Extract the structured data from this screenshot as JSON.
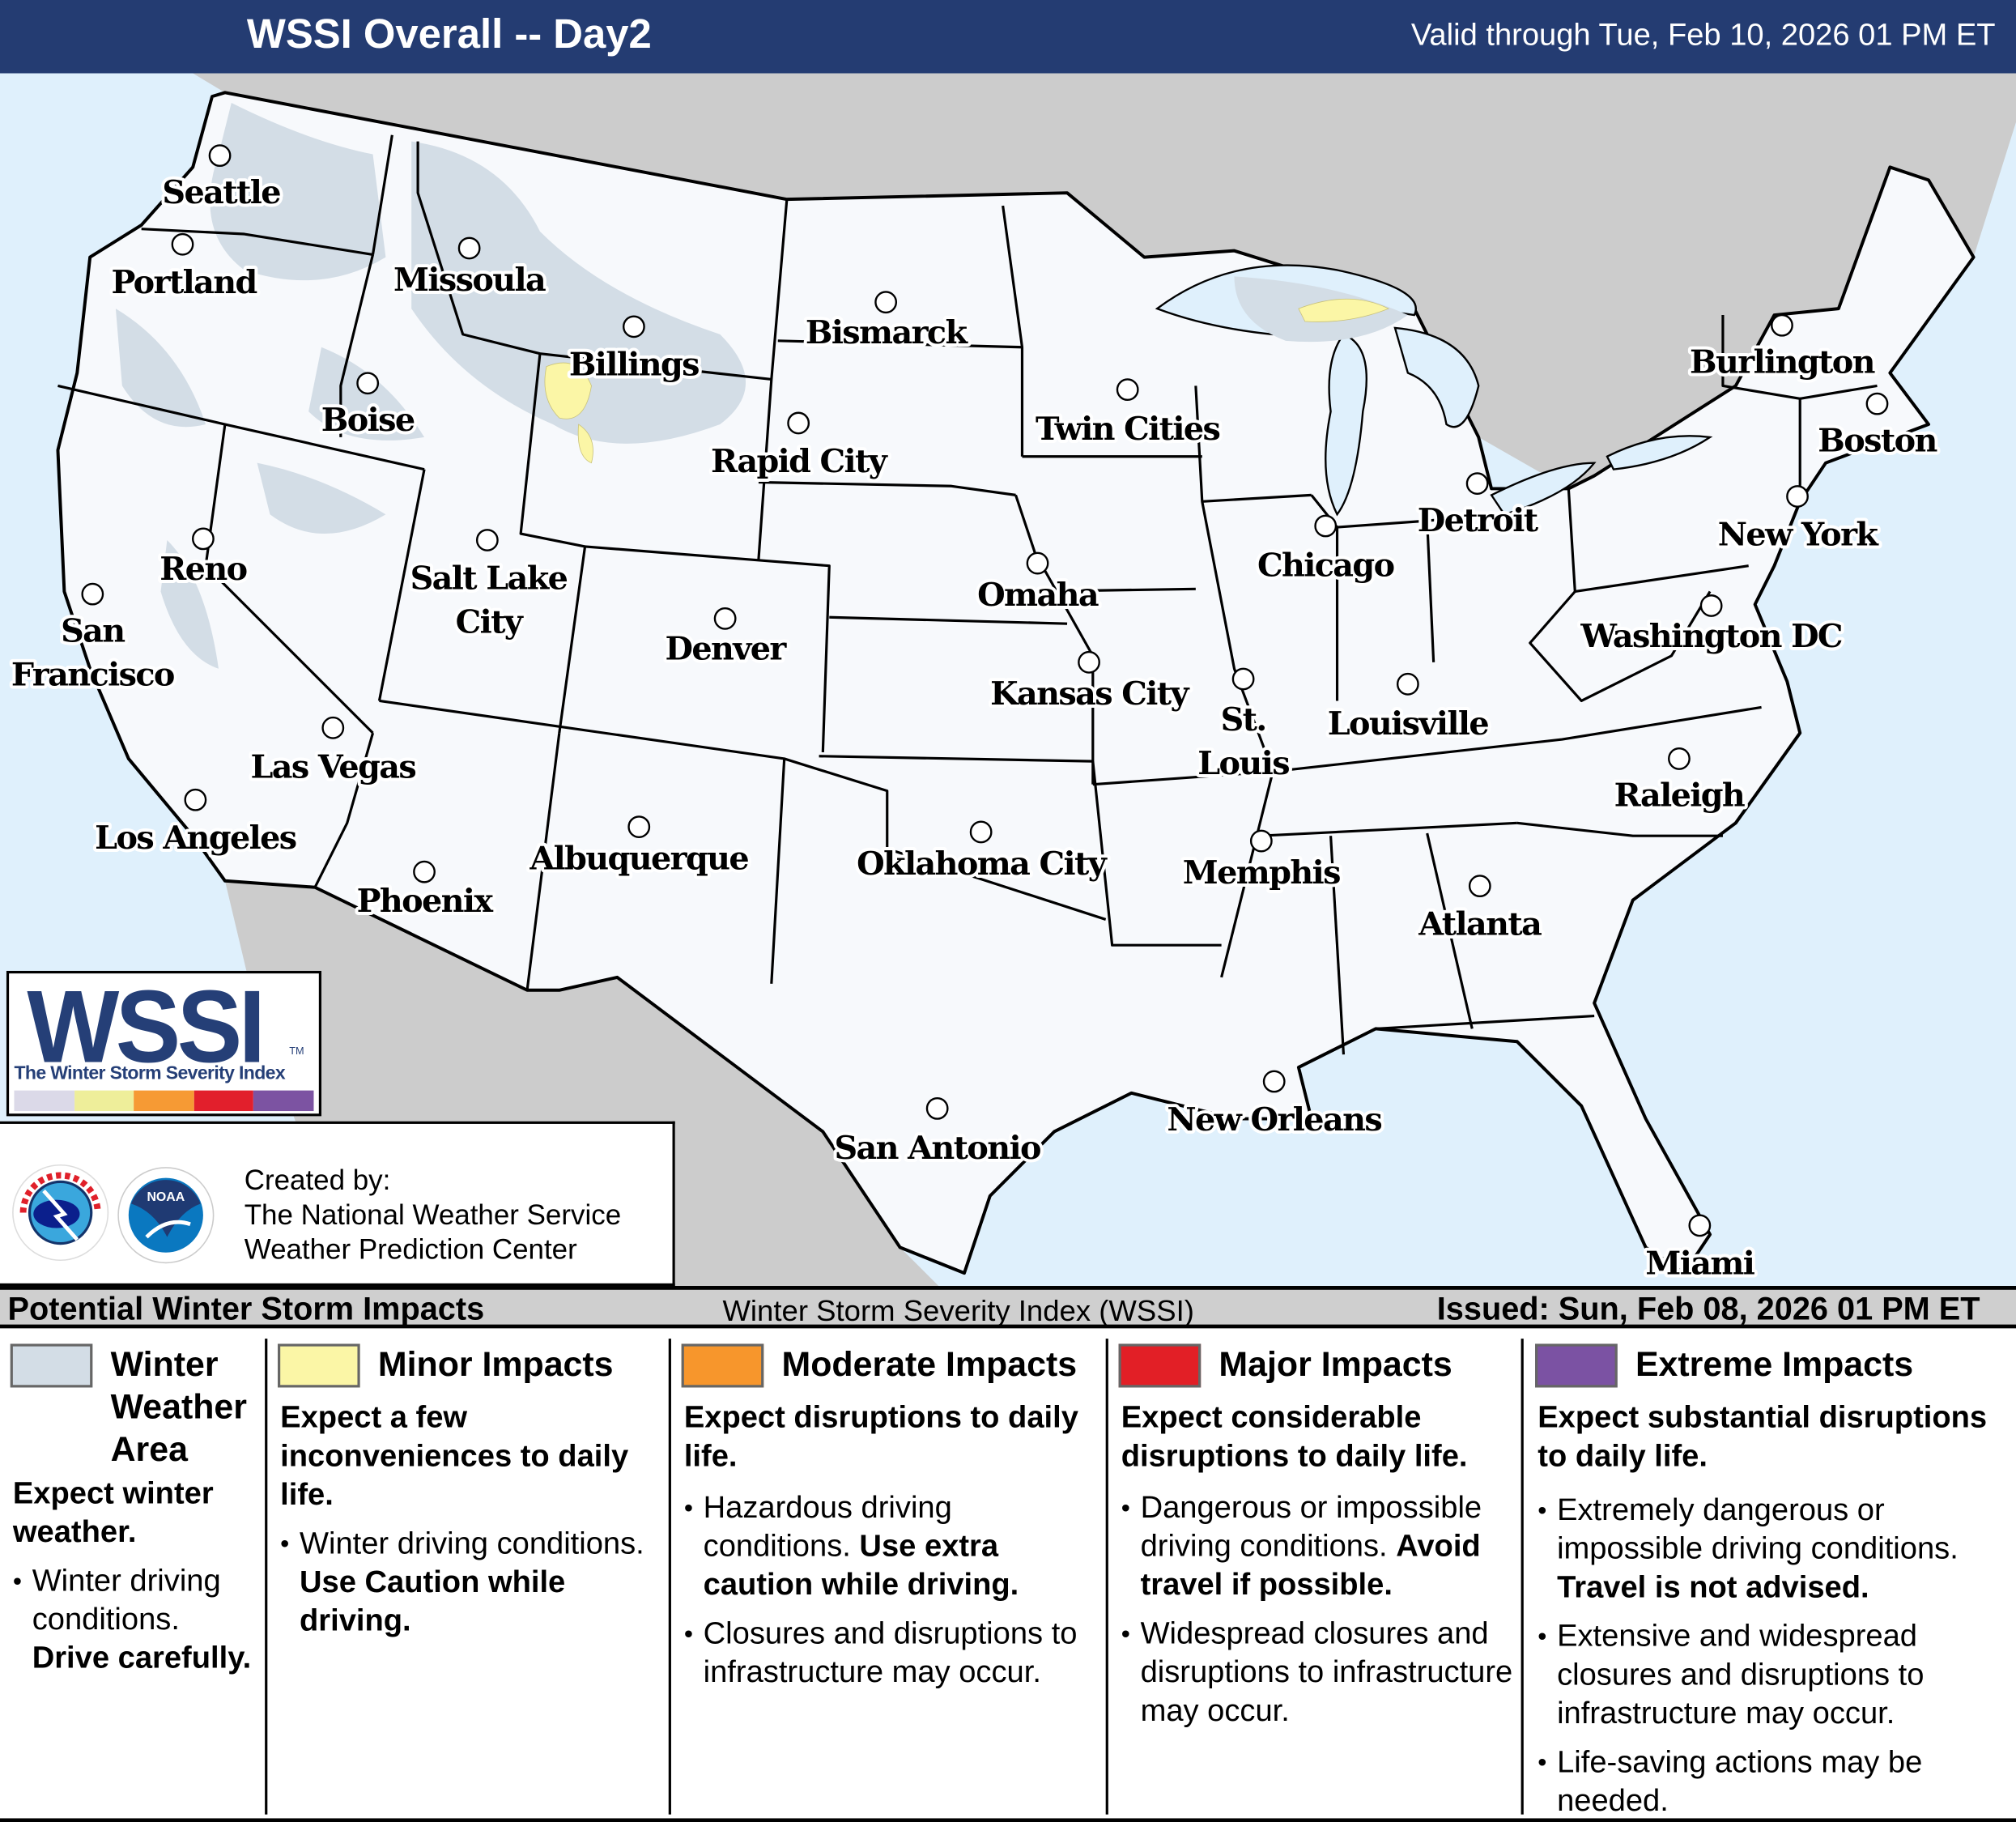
{
  "header": {
    "title": "WSSI Overall -- Day2",
    "valid": "Valid through Tue, Feb 10, 2026 01 PM ET"
  },
  "colors": {
    "header_bg": "#243c72",
    "ocean": "#dff0fc",
    "foreign_land": "#cccccc",
    "us_land": "#f7f9fc",
    "winter_weather_area": "#d3dde6",
    "minor": "#fbf6a6",
    "moderate": "#f7962c",
    "major": "#e21f26",
    "extreme": "#7b52a3"
  },
  "map": {
    "cities": [
      "Seattle",
      "Portland",
      "Missoula",
      "Billings",
      "Bismarck",
      "Boise",
      "Rapid City",
      "Twin Cities",
      "Burlington",
      "Boston",
      "Detroit",
      "New York",
      "Reno",
      "Salt Lake City",
      "Chicago",
      "Omaha",
      "Washington DC",
      "San Francisco",
      "Denver",
      "Kansas City",
      "St. Louis",
      "Louisville",
      "Las Vegas",
      "Raleigh",
      "Los Angeles",
      "Albuquerque",
      "Oklahoma City",
      "Memphis",
      "Phoenix",
      "Atlanta",
      "New Orleans",
      "San Antonio",
      "Miami"
    ]
  },
  "logo": {
    "text": "WSSI",
    "tm": "TM",
    "subtitle": "The Winter Storm Severity Index",
    "bar_colors": [
      "#dbd9e8",
      "#eeee9a",
      "#f69a34",
      "#e21f2c",
      "#7c53a2"
    ]
  },
  "credit": {
    "line1": "Created by:",
    "line2": "The National Weather Service",
    "line3": "Weather Prediction Center",
    "logos": [
      "National Weather Service",
      "NOAA"
    ]
  },
  "legend_bar": {
    "left": "Potential Winter Storm Impacts",
    "center": "Winter Storm Severity Index (WSSI)",
    "right": "Issued: Sun, Feb 08, 2026 01 PM ET"
  },
  "legend": [
    {
      "label": "Winter Weather Area",
      "color": "#d3dde6",
      "lead": "Expect winter weather.",
      "bullets": [
        {
          "text": "Winter driving conditions. ",
          "bold": "Drive carefully."
        }
      ]
    },
    {
      "label": "Minor Impacts",
      "color": "#fbf6a6",
      "lead": "Expect a few inconveniences to daily life.",
      "bullets": [
        {
          "text": "Winter driving conditions. ",
          "bold": "Use Caution while driving."
        }
      ]
    },
    {
      "label": "Moderate Impacts",
      "color": "#f7962c",
      "lead": "Expect disruptions to daily life.",
      "bullets": [
        {
          "text": "Hazardous driving conditions. ",
          "bold": "Use extra caution while driving."
        },
        {
          "text": "Closures and disruptions to infrastructure may occur.",
          "bold": ""
        }
      ]
    },
    {
      "label": "Major Impacts",
      "color": "#e21f26",
      "lead": "Expect considerable disruptions to daily life.",
      "bullets": [
        {
          "text": "Dangerous or impossible driving conditions. ",
          "bold": "Avoid travel if possible."
        },
        {
          "text": "Widespread closures and disruptions to infrastructure may occur.",
          "bold": ""
        }
      ]
    },
    {
      "label": "Extreme Impacts",
      "color": "#7b52a3",
      "lead": "Expect substantial disruptions to daily life.",
      "bullets": [
        {
          "text": "Extremely dangerous or impossible driving conditions. ",
          "bold": "Travel is not advised."
        },
        {
          "text": "Extensive and widespread closures and disruptions to infrastructure may occur.",
          "bold": ""
        },
        {
          "text": "Life-saving actions may be needed.",
          "bold": ""
        }
      ]
    }
  ]
}
